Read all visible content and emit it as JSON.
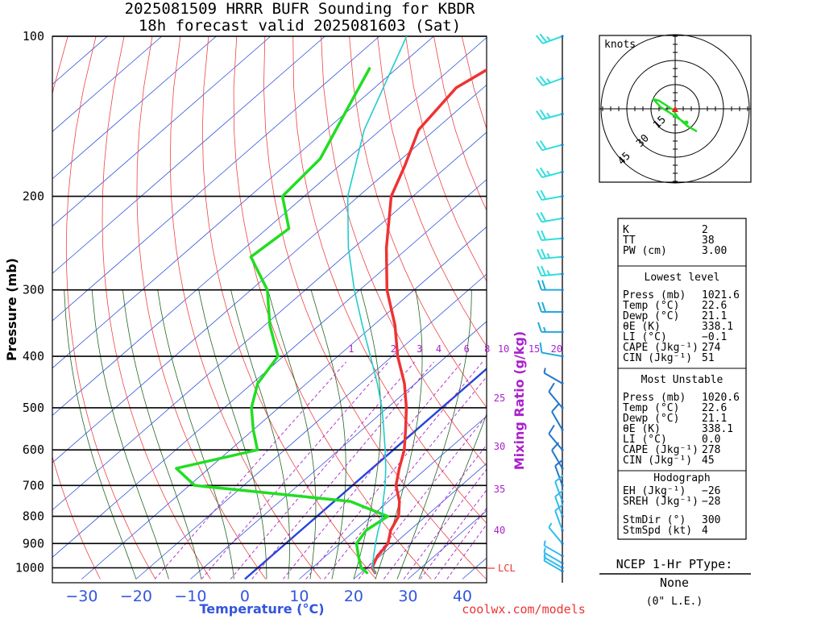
{
  "chart_data": {
    "type": "skew-t",
    "title_line1": "2025081509 HRRR BUFR Sounding for KBDR",
    "title_line2": "18h forecast valid 2025081603 (Sat)",
    "xlabel": "Temperature (°C)",
    "ylabel": "Pressure (mb)",
    "mixing_ratio_label": "Mixing Ratio (g/kg)",
    "xticks": [
      "−30",
      "−20",
      "−10",
      "0",
      "10",
      "20",
      "30",
      "40"
    ],
    "xtick_values": [
      -30,
      -20,
      -10,
      0,
      10,
      20,
      30,
      40
    ],
    "yticks": [
      "100",
      "200",
      "300",
      "400",
      "500",
      "600",
      "700",
      "800",
      "900",
      "1000"
    ],
    "ytick_values": [
      100,
      200,
      300,
      400,
      500,
      600,
      700,
      800,
      900,
      1000
    ],
    "mixing_ratio_ticks_top": [
      "1",
      "2",
      "3",
      "4",
      "6",
      "8",
      "10",
      "15",
      "20"
    ],
    "mixing_ratio_ticks_right": [
      "25",
      "30",
      "35",
      "40"
    ],
    "lcl_label": "LCL",
    "credit": "coolwx.com/models",
    "series": [
      {
        "name": "Temperature",
        "color": "#ee3333",
        "points": [
          [
            1021.6,
            22.6
          ],
          [
            1000,
            21.0
          ],
          [
            950,
            19.5
          ],
          [
            925,
            19.2
          ],
          [
            900,
            18.8
          ],
          [
            850,
            16.5
          ],
          [
            800,
            15.0
          ],
          [
            750,
            12.0
          ],
          [
            700,
            8.0
          ],
          [
            650,
            5.0
          ],
          [
            600,
            2.0
          ],
          [
            550,
            -2.0
          ],
          [
            500,
            -6.5
          ],
          [
            450,
            -12.0
          ],
          [
            400,
            -19.0
          ],
          [
            350,
            -26.0
          ],
          [
            300,
            -35.0
          ],
          [
            250,
            -44.0
          ],
          [
            200,
            -54.0
          ],
          [
            175,
            -58.0
          ],
          [
            150,
            -63.0
          ],
          [
            125,
            -65.0
          ],
          [
            110,
            -62.0
          ],
          [
            100,
            -59.0
          ]
        ]
      },
      {
        "name": "Dewpoint",
        "color": "#22dd22",
        "points": [
          [
            1021.6,
            21.1
          ],
          [
            1000,
            19.0
          ],
          [
            950,
            16.0
          ],
          [
            900,
            13.0
          ],
          [
            850,
            12.0
          ],
          [
            800,
            13.0
          ],
          [
            750,
            3.0
          ],
          [
            700,
            -29.0
          ],
          [
            650,
            -36.0
          ],
          [
            600,
            -25.0
          ],
          [
            550,
            -30.0
          ],
          [
            500,
            -35.0
          ],
          [
            450,
            -39.0
          ],
          [
            400,
            -41.0
          ],
          [
            350,
            -49.0
          ],
          [
            300,
            -57.0
          ],
          [
            260,
            -67.0
          ],
          [
            230,
            -66.0
          ],
          [
            200,
            -74.0
          ],
          [
            170,
            -75.0
          ],
          [
            140,
            -80.0
          ],
          [
            115,
            -85.0
          ]
        ]
      },
      {
        "name": "Parcel",
        "color": "#22cccc",
        "points": [
          [
            1021.6,
            22.6
          ],
          [
            1000,
            21.1
          ],
          [
            950,
            18.8
          ],
          [
            900,
            16.5
          ],
          [
            850,
            14.2
          ],
          [
            800,
            12.0
          ],
          [
            750,
            9.0
          ],
          [
            700,
            6.0
          ],
          [
            650,
            2.5
          ],
          [
            600,
            -1.5
          ],
          [
            550,
            -6.0
          ],
          [
            500,
            -11.0
          ],
          [
            450,
            -17.0
          ],
          [
            400,
            -24.0
          ],
          [
            350,
            -32.0
          ],
          [
            300,
            -41.0
          ],
          [
            250,
            -51.0
          ],
          [
            200,
            -62.0
          ],
          [
            150,
            -73.0
          ],
          [
            100,
            -85.0
          ]
        ]
      }
    ],
    "winds_pressure_mb": [
      100,
      120,
      140,
      160,
      180,
      200,
      220,
      240,
      260,
      280,
      300,
      330,
      360,
      400,
      450,
      500,
      550,
      600,
      650,
      700,
      750,
      800,
      850,
      900,
      950,
      980,
      1000,
      1015
    ],
    "wind_speed_kt": [
      25,
      25,
      25,
      20,
      25,
      20,
      20,
      20,
      25,
      25,
      20,
      20,
      15,
      10,
      5,
      10,
      10,
      10,
      10,
      10,
      10,
      10,
      10,
      5,
      5,
      5,
      5,
      5
    ],
    "wind_dir_deg": [
      250,
      250,
      255,
      255,
      255,
      260,
      260,
      265,
      265,
      265,
      270,
      270,
      270,
      280,
      300,
      320,
      330,
      320,
      330,
      340,
      340,
      340,
      340,
      320,
      300,
      300,
      300,
      300
    ],
    "grid": true
  },
  "hodograph": {
    "units_label": "knots",
    "ring_labels": [
      "15",
      "30",
      "45"
    ]
  },
  "indices": {
    "rows_top": [
      {
        "label": "K",
        "value": "2"
      },
      {
        "label": "TT",
        "value": "38"
      },
      {
        "label": "PW (cm)",
        "value": "3.00"
      }
    ],
    "lowest_level": {
      "header": "Lowest level",
      "rows": [
        {
          "label": "Press (mb)",
          "value": "1021.6"
        },
        {
          "label": "Temp (°C)",
          "value": "22.6"
        },
        {
          "label": "Dewp (°C)",
          "value": "21.1"
        },
        {
          "label": "θE (K)",
          "value": "338.1"
        },
        {
          "label": "LI (°C)",
          "value": "−0.1"
        },
        {
          "label": "CAPE (Jkg⁻¹)",
          "value": "274"
        },
        {
          "label": "CIN (Jkg⁻¹)",
          "value": "51"
        }
      ]
    },
    "most_unstable": {
      "header": "Most Unstable",
      "rows": [
        {
          "label": "Press (mb)",
          "value": "1020.6"
        },
        {
          "label": "Temp (°C)",
          "value": "22.6"
        },
        {
          "label": "Dewp (°C)",
          "value": "21.1"
        },
        {
          "label": "θE (K)",
          "value": "338.1"
        },
        {
          "label": "LI (°C)",
          "value": "0.0"
        },
        {
          "label": "CAPE (Jkg⁻¹)",
          "value": "278"
        },
        {
          "label": "CIN (Jkg⁻¹)",
          "value": "45"
        }
      ]
    },
    "hodograph_stats": {
      "header": "Hodograph",
      "rows": [
        {
          "label": "EH (Jkg⁻¹)",
          "value": "−26"
        },
        {
          "label": "SREH (Jkg⁻¹)",
          "value": "−28"
        },
        {
          "label": "StmDir (°)",
          "value": "300"
        },
        {
          "label": "StmSpd (kt)",
          "value": "4"
        }
      ]
    }
  },
  "ptype": {
    "title": "NCEP 1-Hr PType:",
    "value": "None",
    "amount": "(0\" L.E.)"
  }
}
